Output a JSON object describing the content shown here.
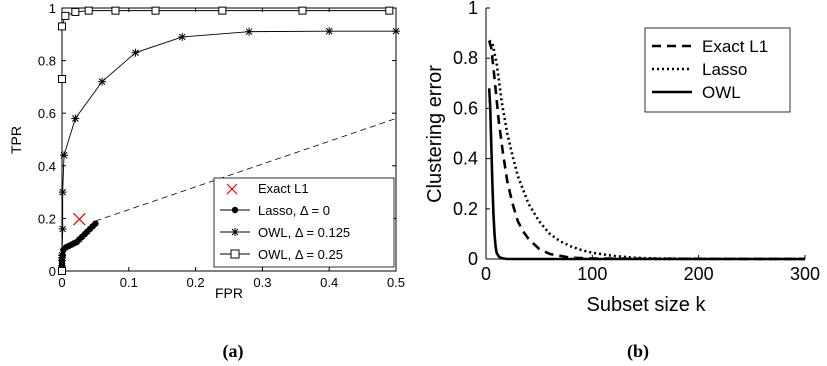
{
  "panels": [
    {
      "caption": "(a)"
    },
    {
      "caption": "(b)"
    }
  ],
  "colors": {
    "axis": "#000000",
    "exact_marker": "#ff0000",
    "line": "#000000",
    "background": "#ffffff"
  },
  "chart_data": [
    {
      "type": "line",
      "title": "",
      "xlabel": "FPR",
      "ylabel": "TPR",
      "xlim": [
        0,
        0.5
      ],
      "ylim": [
        0,
        1
      ],
      "xticks": [
        "0",
        "0.1",
        "0.2",
        "0.3",
        "0.4",
        "0.5"
      ],
      "xtick_values": [
        0,
        0.1,
        0.2,
        0.3,
        0.4,
        0.5
      ],
      "yticks": [
        "0",
        "0.2",
        "0.4",
        "0.6",
        "0.8",
        "1"
      ],
      "ytick_values": [
        0,
        0.2,
        0.4,
        0.6,
        0.8,
        1
      ],
      "grid": false,
      "legend_position": "bottom-right",
      "reference_line": {
        "style": "dashed",
        "points": [
          [
            0.05,
            0.19
          ],
          [
            0.5,
            0.58
          ]
        ]
      },
      "series": [
        {
          "name": "Exact L1",
          "style": "marker",
          "marker": "x",
          "color": "#ff0000",
          "points": [
            [
              0.026,
              0.197
            ]
          ]
        },
        {
          "name": "Lasso, Δ = 0",
          "style": "solid",
          "marker": "dot",
          "color": "#000000",
          "points": [
            [
              0,
              0
            ],
            [
              0,
              0.01
            ],
            [
              0,
              0.02
            ],
            [
              0,
              0.03
            ],
            [
              0,
              0.04
            ],
            [
              0.001,
              0.06
            ],
            [
              0.002,
              0.08
            ],
            [
              0.006,
              0.09
            ],
            [
              0.01,
              0.095
            ],
            [
              0.014,
              0.1
            ],
            [
              0.018,
              0.105
            ],
            [
              0.022,
              0.11
            ],
            [
              0.026,
              0.12
            ],
            [
              0.03,
              0.13
            ],
            [
              0.034,
              0.14
            ],
            [
              0.038,
              0.15
            ],
            [
              0.042,
              0.16
            ],
            [
              0.046,
              0.17
            ],
            [
              0.05,
              0.18
            ]
          ]
        },
        {
          "name": "OWL, Δ = 0.125",
          "style": "solid",
          "marker": "asterisk",
          "color": "#000000",
          "points": [
            [
              0,
              0
            ],
            [
              0,
              0.02
            ],
            [
              0,
              0.04
            ],
            [
              0,
              0.05
            ],
            [
              0,
              0.06
            ],
            [
              0.001,
              0.16
            ],
            [
              0.001,
              0.3
            ],
            [
              0.003,
              0.44
            ],
            [
              0.02,
              0.58
            ],
            [
              0.06,
              0.72
            ],
            [
              0.11,
              0.83
            ],
            [
              0.18,
              0.89
            ],
            [
              0.28,
              0.91
            ],
            [
              0.4,
              0.912
            ],
            [
              0.5,
              0.912
            ]
          ]
        },
        {
          "name": "OWL, Δ = 0.25",
          "style": "solid",
          "marker": "square",
          "color": "#000000",
          "points": [
            [
              0,
              0
            ],
            [
              0,
              0.73
            ],
            [
              0,
              0.93
            ],
            [
              0.005,
              0.97
            ],
            [
              0.02,
              0.985
            ],
            [
              0.04,
              0.99
            ],
            [
              0.08,
              0.99
            ],
            [
              0.14,
              0.99
            ],
            [
              0.24,
              0.99
            ],
            [
              0.36,
              0.99
            ],
            [
              0.49,
              0.99
            ]
          ]
        }
      ]
    },
    {
      "type": "line",
      "title": "",
      "xlabel": "Subset size k",
      "ylabel": "Clustering error",
      "xlim": [
        0,
        300
      ],
      "ylim": [
        0,
        1
      ],
      "xticks": [
        "0",
        "100",
        "200",
        "300"
      ],
      "xtick_values": [
        0,
        100,
        200,
        300
      ],
      "yticks": [
        "0",
        "0.2",
        "0.4",
        "0.6",
        "0.8",
        "1"
      ],
      "ytick_values": [
        0,
        0.2,
        0.4,
        0.6,
        0.8,
        1
      ],
      "grid": false,
      "legend_position": "top-right",
      "series": [
        {
          "name": "Exact L1",
          "style": "dashed",
          "color": "#000000",
          "points": [
            [
              3,
              0.87
            ],
            [
              5,
              0.84
            ],
            [
              8,
              0.72
            ],
            [
              12,
              0.55
            ],
            [
              16,
              0.42
            ],
            [
              20,
              0.31
            ],
            [
              25,
              0.22
            ],
            [
              30,
              0.15
            ],
            [
              35,
              0.11
            ],
            [
              40,
              0.08
            ],
            [
              50,
              0.04
            ],
            [
              60,
              0.02
            ],
            [
              80,
              0.005
            ],
            [
              100,
              0.002
            ],
            [
              150,
              0.001
            ],
            [
              300,
              0
            ]
          ]
        },
        {
          "name": "Lasso",
          "style": "dotted",
          "color": "#000000",
          "points": [
            [
              3,
              0.87
            ],
            [
              6,
              0.86
            ],
            [
              10,
              0.78
            ],
            [
              15,
              0.62
            ],
            [
              20,
              0.5
            ],
            [
              25,
              0.41
            ],
            [
              30,
              0.33
            ],
            [
              40,
              0.22
            ],
            [
              50,
              0.15
            ],
            [
              60,
              0.1
            ],
            [
              70,
              0.07
            ],
            [
              80,
              0.05
            ],
            [
              90,
              0.035
            ],
            [
              100,
              0.025
            ],
            [
              120,
              0.012
            ],
            [
              140,
              0.005
            ],
            [
              160,
              0.002
            ],
            [
              200,
              0.001
            ],
            [
              300,
              0
            ]
          ]
        },
        {
          "name": "OWL",
          "style": "solid",
          "color": "#000000",
          "points": [
            [
              3,
              0.68
            ],
            [
              4,
              0.6
            ],
            [
              5,
              0.45
            ],
            [
              6,
              0.3
            ],
            [
              7,
              0.18
            ],
            [
              8,
              0.1
            ],
            [
              9,
              0.05
            ],
            [
              10,
              0.025
            ],
            [
              12,
              0.01
            ],
            [
              15,
              0.003
            ],
            [
              20,
              0
            ],
            [
              300,
              0
            ]
          ]
        }
      ]
    }
  ]
}
